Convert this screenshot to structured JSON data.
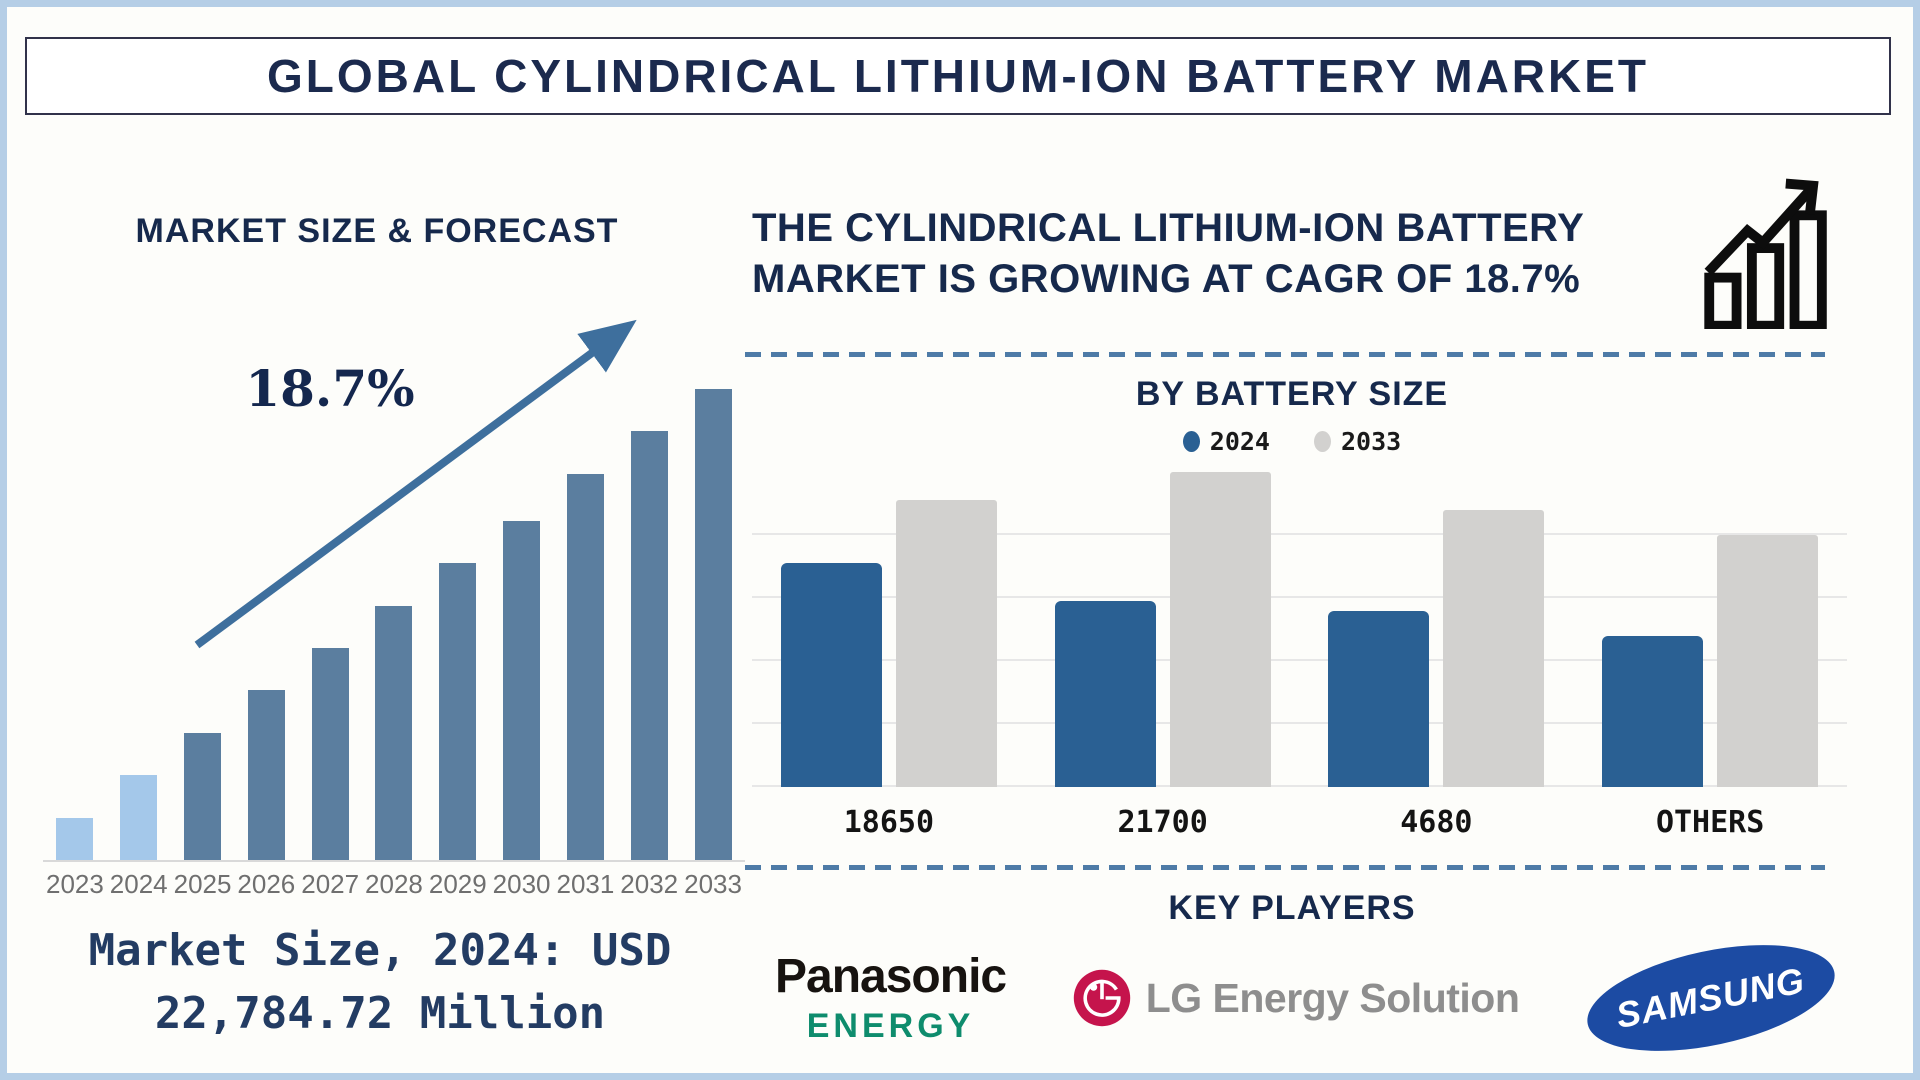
{
  "page": {
    "title": "GLOBAL CYLINDRICAL LITHIUM-ION BATTERY MARKET"
  },
  "left": {
    "heading": "MARKET SIZE & FORECAST",
    "cagr_label": "18.7%",
    "footer_line1": "Market Size, 2024: USD",
    "footer_line2": "22,784.72 Million"
  },
  "right": {
    "headline_line1": "THE CYLINDRICAL LITHIUM-ION BATTERY",
    "headline_line2": "MARKET IS GROWING AT CAGR OF 18.7%",
    "battery_section_title": "BY BATTERY SIZE",
    "players_section_title": "KEY PLAYERS",
    "players": {
      "panasonic_line1": "Panasonic",
      "panasonic_line2": "ENERGY",
      "lg_text": "LG Energy Solution",
      "samsung_text": "SAMSUNG"
    }
  },
  "colors": {
    "navy_text": "#16294c",
    "dashed_separator": "#4e7ba7",
    "trend_arrow": "#3e6f9d",
    "page_border": "#b5cee6",
    "panasonic_green": "#0e8c6d",
    "lg_red": "#c5144c",
    "lg_gray_text": "#8e8e8e",
    "samsung_blue": "#1c4ba3"
  },
  "chart_data": [
    {
      "type": "bar",
      "title": "MARKET SIZE & FORECAST",
      "categories": [
        "2023",
        "2024",
        "2025",
        "2026",
        "2027",
        "2028",
        "2029",
        "2030",
        "2031",
        "2032",
        "2033"
      ],
      "values": [
        9,
        18,
        27,
        36,
        45,
        54,
        63,
        72,
        82,
        91,
        100
      ],
      "units": "relative height, no y-axis shown (index, 2033 = 100)",
      "ylim": [
        0,
        100
      ],
      "grid": false,
      "bar_color": "#5b7e9f",
      "highlight_color": "#a4c8ea",
      "highlight_categories": [
        "2023",
        "2024"
      ],
      "annotations": {
        "cagr": "18.7%",
        "market_size_2024": "USD 22,784.72 Million"
      }
    },
    {
      "type": "bar",
      "title": "BY BATTERY SIZE",
      "categories": [
        "18650",
        "21700",
        "4680",
        "OTHERS"
      ],
      "series": [
        {
          "name": "2024",
          "color": "#2a6093",
          "values": [
            71,
            59,
            56,
            48
          ]
        },
        {
          "name": "2033",
          "color": "#d2d1cf",
          "values": [
            91,
            100,
            88,
            80
          ]
        }
      ],
      "units": "relative height, no y-axis shown (index, 21700 in 2033 = 100)",
      "ylim": [
        0,
        100
      ],
      "grid": true,
      "legend_position": "top-center"
    }
  ]
}
